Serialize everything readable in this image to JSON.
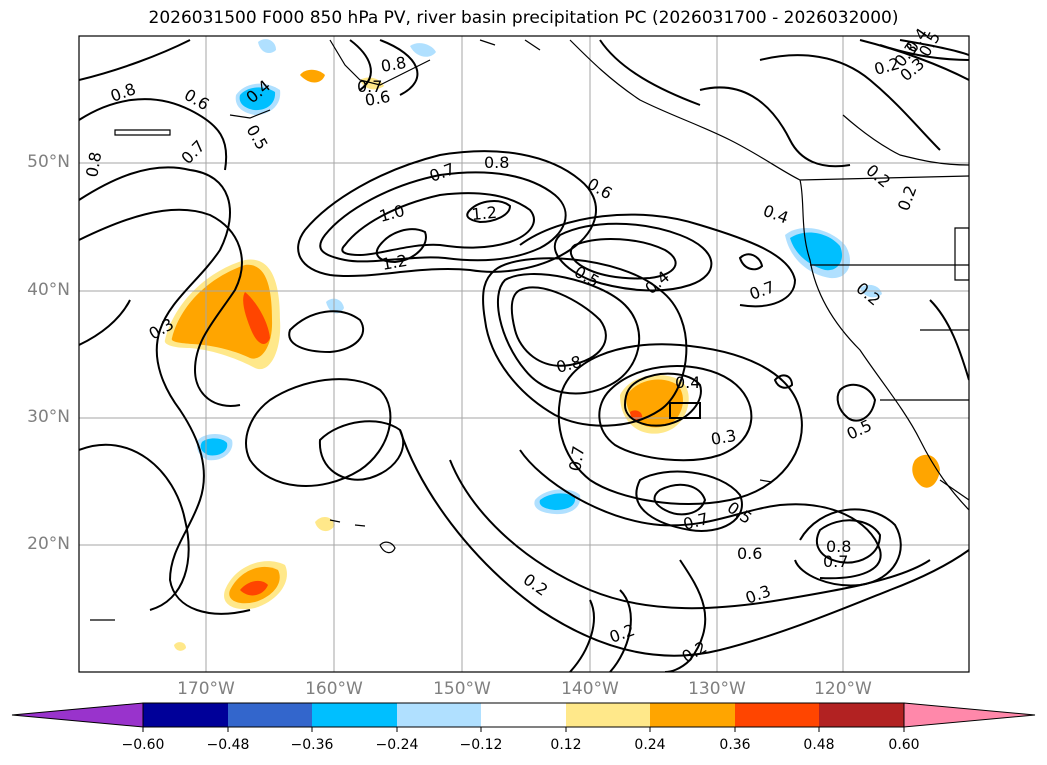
{
  "title": "2026031500 F000 850 hPa PV, river basin precipitation PC (2026031700 - 2026032000)",
  "longitude_labels": [
    "170°W",
    "160°W",
    "150°W",
    "140°W",
    "130°W",
    "120°W"
  ],
  "latitude_labels": [
    "50°N",
    "40°N",
    "30°N",
    "20°N"
  ],
  "contour_labels": [
    "0.8",
    "0.6",
    "0.7",
    "0.8",
    "0.4",
    "0.5",
    "0.8",
    "0.7",
    "0.6",
    "0.7",
    "0.8",
    "1.0",
    "1.2",
    "1.2",
    "0.6",
    "0.4",
    "0.5",
    "0.4",
    "0.7",
    "0.3",
    "0.8",
    "0.4",
    "0.3",
    "0.7",
    "0.5",
    "0.7",
    "0.6",
    "0.8",
    "0.7",
    "0.2",
    "0.3",
    "0.2",
    "0.2",
    "0.2",
    "0.3",
    "0.5",
    "0.2",
    "0.2",
    "0.5",
    "0.2",
    "0.3",
    "0.4"
  ],
  "colorbar": {
    "ticks": [
      "−0.60",
      "−0.48",
      "−0.36",
      "−0.24",
      "−0.12",
      "0.12",
      "0.24",
      "0.36",
      "0.48",
      "0.60"
    ],
    "colors": [
      "#9933cc",
      "#000099",
      "#3366cc",
      "#00bfff",
      "#b0e0ff",
      "#ffffff",
      "#ffe88a",
      "#ffa500",
      "#ff4500",
      "#b22222",
      "#ff88aa"
    ]
  }
}
